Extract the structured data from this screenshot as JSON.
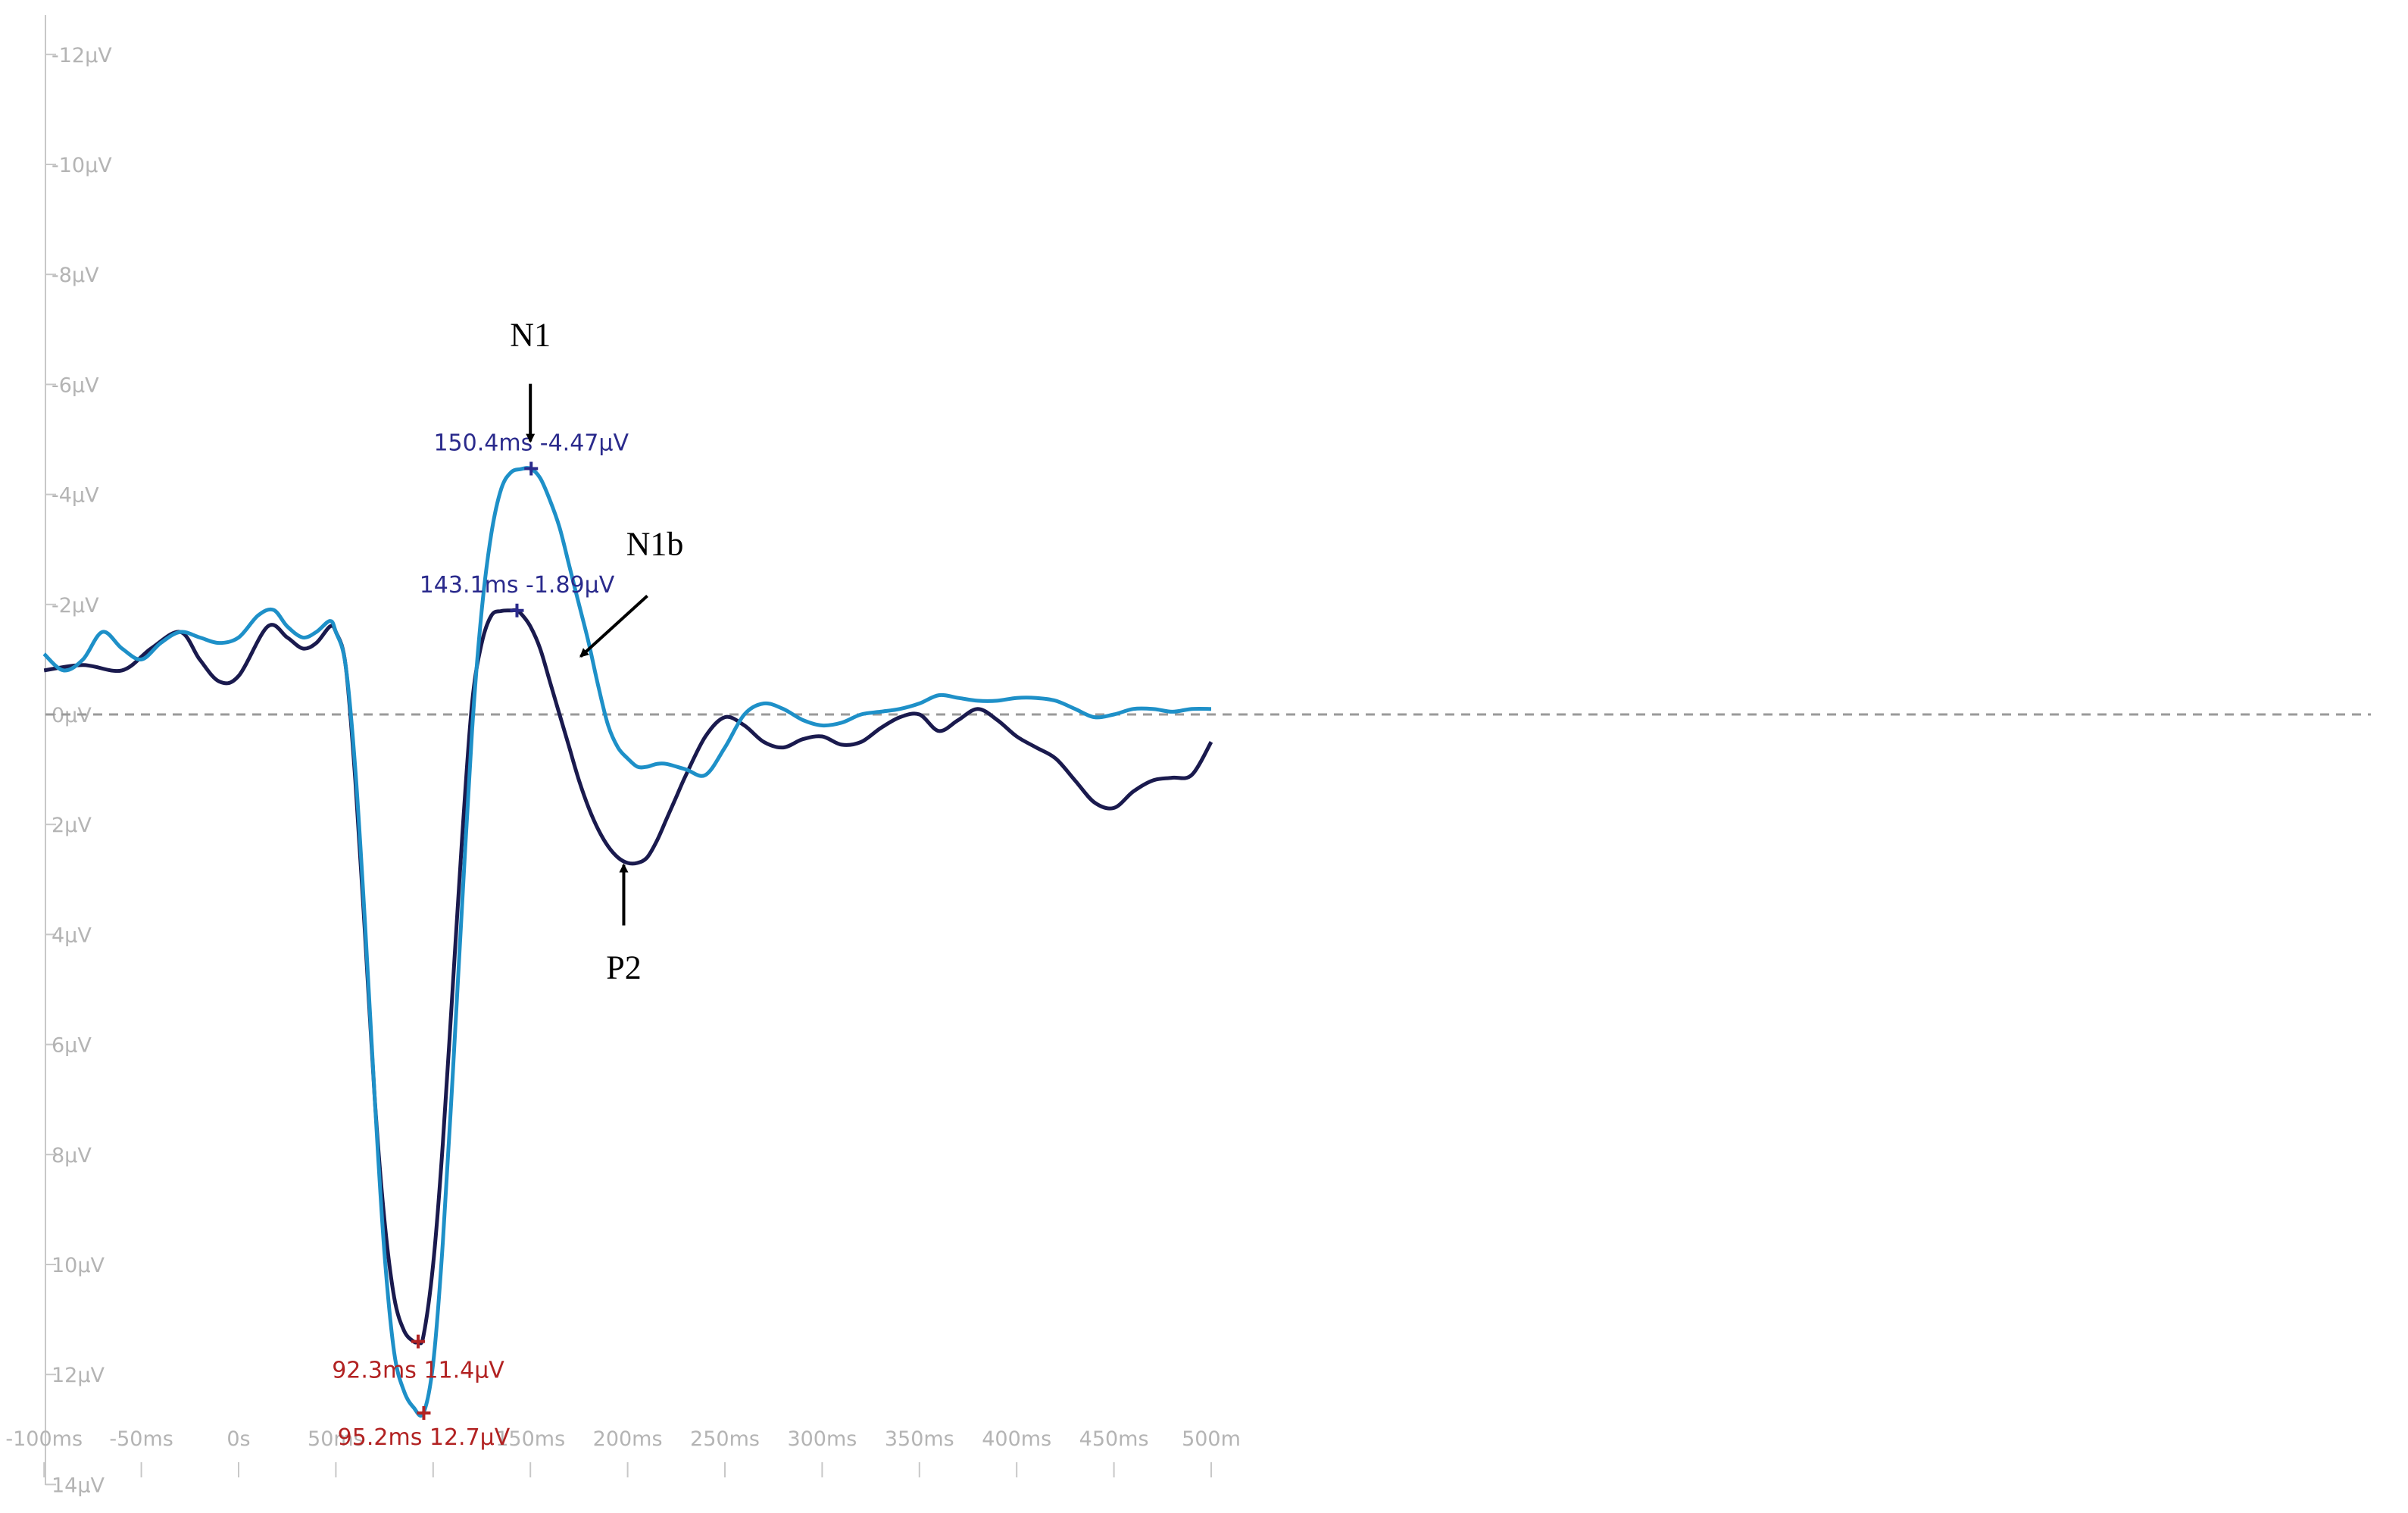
{
  "chart_data": {
    "type": "line",
    "xlim": [
      -100,
      500
    ],
    "ylim": [
      -12,
      14
    ],
    "y_axis_inverted": true,
    "grid": false,
    "legend": "none",
    "zero_line": {
      "y": 0,
      "style": "dashed",
      "color": "#9a9a9a"
    },
    "x_tick_values": [
      -100,
      -50,
      0,
      50,
      100,
      150,
      200,
      250,
      300,
      350,
      400,
      450,
      500
    ],
    "x_tick_labels": [
      "-100ms",
      "-50ms",
      "0s",
      "50ms",
      "",
      "150ms",
      "200ms",
      "250ms",
      "300ms",
      "350ms",
      "400ms",
      "450ms",
      "500m"
    ],
    "y_tick_values": [
      -12,
      -10,
      -8,
      -6,
      -4,
      -2,
      0,
      2,
      4,
      6,
      8,
      10,
      12,
      14
    ],
    "y_tick_labels": [
      "-12µV",
      "-10µV",
      "-8µV",
      "-6µV",
      "-4µV",
      "-2µV",
      "0µV",
      "2µV",
      "4µV",
      "6µV",
      "8µV",
      "10µV",
      "12µV",
      "14µV"
    ],
    "series": [
      {
        "color": "#1a1a4e",
        "x": [
          -100,
          -80,
          -60,
          -45,
          -30,
          -20,
          -10,
          0,
          15,
          25,
          33,
          40,
          47,
          50,
          55,
          60,
          65,
          70,
          75,
          80,
          85,
          90,
          92.3,
          95,
          100,
          105,
          110,
          115,
          120,
          125,
          130,
          135,
          140,
          143.1,
          146,
          150,
          155,
          160,
          165,
          170,
          175,
          180,
          185,
          190,
          195,
          200,
          205,
          210,
          215,
          220,
          225,
          230,
          240,
          250,
          260,
          270,
          280,
          290,
          300,
          310,
          320,
          330,
          340,
          350,
          360,
          370,
          380,
          390,
          400,
          410,
          420,
          430,
          440,
          450,
          460,
          470,
          480,
          490,
          500
        ],
        "y": [
          -0.8,
          -0.9,
          -0.8,
          -1.2,
          -1.5,
          -1.0,
          -0.6,
          -0.7,
          -1.6,
          -1.4,
          -1.2,
          -1.3,
          -1.6,
          -1.5,
          -0.9,
          1.2,
          4.0,
          7.0,
          9.2,
          10.6,
          11.2,
          11.4,
          11.4,
          11.3,
          10.0,
          7.8,
          5.0,
          2.2,
          -0.2,
          -1.3,
          -1.8,
          -1.88,
          -1.89,
          -1.89,
          -1.8,
          -1.6,
          -1.2,
          -0.6,
          0.0,
          0.6,
          1.2,
          1.7,
          2.1,
          2.4,
          2.6,
          2.7,
          2.7,
          2.6,
          2.3,
          1.9,
          1.5,
          1.1,
          0.4,
          0.05,
          0.2,
          0.5,
          0.6,
          0.45,
          0.4,
          0.55,
          0.5,
          0.25,
          0.05,
          0.0,
          0.3,
          0.1,
          -0.1,
          0.1,
          0.4,
          0.6,
          0.8,
          1.2,
          1.6,
          1.7,
          1.4,
          1.2,
          1.15,
          1.1,
          0.5
        ]
      },
      {
        "color": "#1e90c8",
        "x": [
          -100,
          -90,
          -80,
          -70,
          -60,
          -50,
          -40,
          -30,
          -20,
          -10,
          0,
          10,
          18,
          25,
          33,
          40,
          47,
          50,
          55,
          60,
          65,
          70,
          75,
          80,
          85,
          90,
          95,
          100,
          105,
          110,
          115,
          120,
          125,
          130,
          135,
          140,
          145,
          150,
          155,
          160,
          165,
          170,
          175,
          180,
          185,
          190,
          195,
          200,
          205,
          210,
          215,
          220,
          230,
          240,
          250,
          260,
          270,
          280,
          290,
          300,
          310,
          320,
          330,
          340,
          350,
          360,
          370,
          380,
          390,
          400,
          410,
          420,
          430,
          440,
          450,
          460,
          470,
          480,
          490,
          500
        ],
        "y": [
          -1.1,
          -0.8,
          -1.0,
          -1.5,
          -1.2,
          -1.0,
          -1.3,
          -1.5,
          -1.4,
          -1.3,
          -1.4,
          -1.8,
          -1.9,
          -1.6,
          -1.4,
          -1.5,
          -1.7,
          -1.5,
          -0.9,
          1.0,
          3.8,
          7.0,
          9.8,
          11.6,
          12.3,
          12.6,
          12.7,
          11.8,
          9.6,
          6.6,
          3.4,
          0.3,
          -1.9,
          -3.3,
          -4.1,
          -4.4,
          -4.46,
          -4.47,
          -4.3,
          -3.9,
          -3.4,
          -2.7,
          -2.0,
          -1.3,
          -0.5,
          0.2,
          0.6,
          0.8,
          0.95,
          0.95,
          0.9,
          0.9,
          1.0,
          1.1,
          0.6,
          0.0,
          -0.2,
          -0.1,
          0.1,
          0.2,
          0.15,
          0.0,
          -0.05,
          -0.1,
          -0.2,
          -0.35,
          -0.3,
          -0.25,
          -0.25,
          -0.3,
          -0.3,
          -0.25,
          -0.1,
          0.05,
          0.0,
          -0.1,
          -0.1,
          -0.05,
          -0.1,
          -0.1
        ]
      }
    ],
    "markers": [
      {
        "x": 92.3,
        "y": 11.4,
        "color": "#b22222",
        "label": "92.3ms 11.4µV"
      },
      {
        "x": 95.2,
        "y": 12.7,
        "color": "#b22222",
        "label": "95.2ms 12.7µV"
      },
      {
        "x": 150.4,
        "y": -4.47,
        "color": "#2a2a8c",
        "label": "150.4ms -4.47µV"
      },
      {
        "x": 143.1,
        "y": -1.89,
        "color": "#2a2a8c",
        "label": "143.1ms -1.89µV"
      }
    ],
    "annotations": [
      {
        "text": "N1",
        "x": 150,
        "y": -6.7,
        "arrow": "down"
      },
      {
        "text": "N1b",
        "x": 214,
        "y": -2.9,
        "arrow": "diagonal-down-left"
      },
      {
        "text": "P2",
        "x": 198,
        "y": 4.8,
        "arrow": "up"
      }
    ]
  }
}
